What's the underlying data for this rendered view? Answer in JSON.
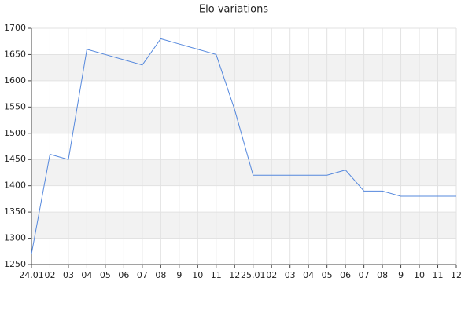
{
  "chart_data": {
    "type": "line",
    "title": "Elo variations",
    "categories": [
      "24.01",
      "02",
      "03",
      "04",
      "05",
      "06",
      "07",
      "08",
      "9",
      "10",
      "11",
      "12",
      "25.01",
      "02",
      "03",
      "04",
      "05",
      "06",
      "07",
      "08",
      "9",
      "10",
      "11",
      "12"
    ],
    "series": [
      {
        "name": "Elo",
        "color": "#5588dd",
        "values": [
          1270,
          1460,
          1450,
          1660,
          1650,
          1640,
          1630,
          1680,
          1670,
          1660,
          1650,
          1545,
          1420,
          1420,
          1420,
          1420,
          1420,
          1430,
          1390,
          1390,
          1380,
          1380,
          1380,
          1380
        ]
      }
    ],
    "ylim": [
      1250,
      1700
    ],
    "yticks": [
      1250,
      1300,
      1350,
      1400,
      1450,
      1500,
      1550,
      1600,
      1650,
      1700
    ],
    "grid": true,
    "bands": true
  }
}
